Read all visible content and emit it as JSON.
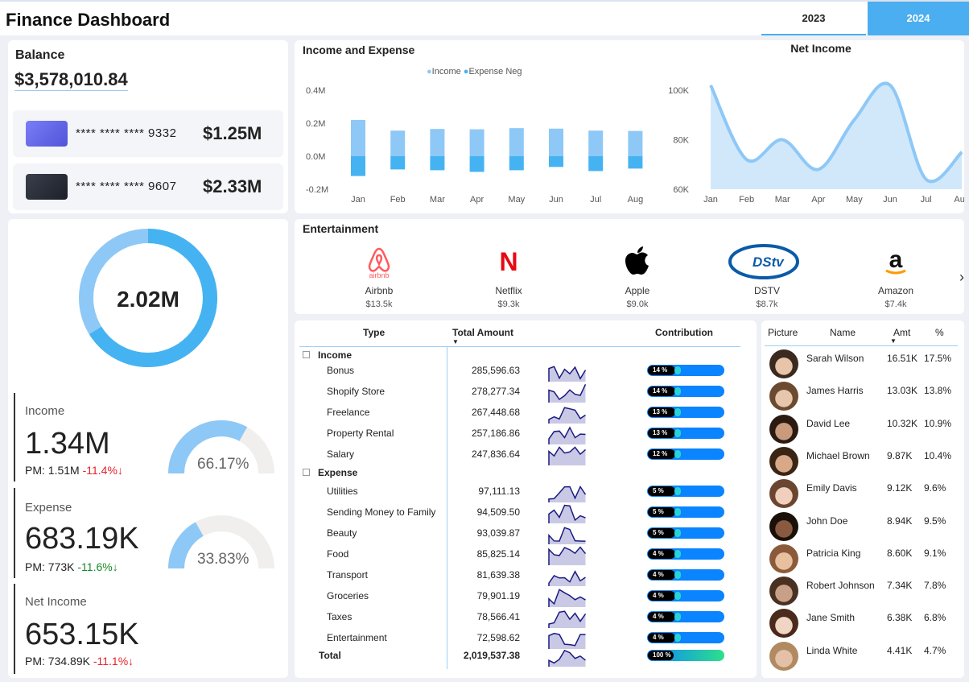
{
  "header": {
    "title": "Finance Dashboard",
    "years": [
      "2023",
      "2024"
    ],
    "selected_year": "2024"
  },
  "balance": {
    "label": "Balance",
    "value": "$3,578,010.84",
    "cards": [
      {
        "number": "**** **** **** 9332",
        "amount": "$1.25M",
        "color": "#6b6ff0"
      },
      {
        "number": "**** **** **** 9607",
        "amount": "$2.33M",
        "color": "#2b2f3a"
      }
    ]
  },
  "donut": {
    "value": "2.02M",
    "income_share": 0.6617
  },
  "kpis": [
    {
      "label": "Income",
      "value": "1.34M",
      "pm": "PM: 1.51M",
      "change": "-11.4%",
      "arrow": "↓",
      "change_color": "#e8202a",
      "gauge_value": "66.17%",
      "gauge": 0.6617
    },
    {
      "label": "Expense",
      "value": "683.19K",
      "pm": "PM: 773K",
      "change": "-11.6%",
      "arrow": "↓",
      "change_color": "#1a8a2a",
      "gauge_value": "33.83%",
      "gauge": 0.3383
    },
    {
      "label": "Net Income",
      "value": "653.15K",
      "pm": "PM: 734.89K",
      "change": "-11.1%",
      "arrow": "↓",
      "change_color": "#e8202a"
    }
  ],
  "chart_data": [
    {
      "type": "bar",
      "title": "Income and Expense",
      "categories": [
        "Jan",
        "Feb",
        "Mar",
        "Apr",
        "May",
        "Jun",
        "Jul",
        "Aug"
      ],
      "series": [
        {
          "name": "Income",
          "values": [
            0.22,
            0.155,
            0.165,
            0.163,
            0.17,
            0.167,
            0.155,
            0.153
          ],
          "color": "#8ec8f6"
        },
        {
          "name": "Expense Neg",
          "values": [
            -0.12,
            -0.08,
            -0.085,
            -0.095,
            -0.085,
            -0.065,
            -0.09,
            -0.075
          ],
          "color": "#45b3f2"
        }
      ],
      "ylim": [
        -0.2,
        0.4
      ],
      "yticks": [
        "0.4M",
        "0.2M",
        "0.0M",
        "-0.2M"
      ],
      "legend": "top"
    },
    {
      "type": "area",
      "title": "Net Income",
      "categories": [
        "Jan",
        "Feb",
        "Mar",
        "Apr",
        "May",
        "Jun",
        "Jul",
        "Aug"
      ],
      "values": [
        102,
        72,
        80,
        68,
        88,
        102,
        64,
        75
      ],
      "ylim": [
        60,
        105
      ],
      "yticks": [
        "100K",
        "80K",
        "60K"
      ],
      "color": "#8ec8f6"
    }
  ],
  "entertainment": {
    "title": "Entertainment",
    "items": [
      {
        "name": "Airbnb",
        "amount": "$13.5k"
      },
      {
        "name": "Netflix",
        "amount": "$9.3k"
      },
      {
        "name": "Apple",
        "amount": "$9.0k"
      },
      {
        "name": "DSTV",
        "amount": "$8.7k"
      },
      {
        "name": "Amazon",
        "amount": "$7.4k"
      }
    ]
  },
  "table": {
    "headers": [
      "Type",
      "Total Amount",
      "Contribution"
    ],
    "groups": [
      {
        "name": "Income",
        "rows": [
          {
            "type": "Bonus",
            "amount": "285,596.63",
            "pct": "14 %"
          },
          {
            "type": "Shopify Store",
            "amount": "278,277.34",
            "pct": "14 %"
          },
          {
            "type": "Freelance",
            "amount": "267,448.68",
            "pct": "13 %"
          },
          {
            "type": "Property Rental",
            "amount": "257,186.86",
            "pct": "13 %"
          },
          {
            "type": "Salary",
            "amount": "247,836.64",
            "pct": "12 %"
          }
        ]
      },
      {
        "name": "Expense",
        "rows": [
          {
            "type": "Utilities",
            "amount": "97,111.13",
            "pct": "5 %"
          },
          {
            "type": "Sending Money to Family",
            "amount": "94,509.50",
            "pct": "5 %"
          },
          {
            "type": "Beauty",
            "amount": "93,039.87",
            "pct": "5 %"
          },
          {
            "type": "Food",
            "amount": "85,825.14",
            "pct": "4 %"
          },
          {
            "type": "Transport",
            "amount": "81,639.38",
            "pct": "4 %"
          },
          {
            "type": "Groceries",
            "amount": "79,901.19",
            "pct": "4 %"
          },
          {
            "type": "Taxes",
            "amount": "78,566.41",
            "pct": "4 %"
          },
          {
            "type": "Entertainment",
            "amount": "72,598.62",
            "pct": "4 %"
          }
        ]
      }
    ],
    "total": {
      "label": "Total",
      "amount": "2,019,537.38",
      "pct": "100 %"
    }
  },
  "people": {
    "headers": [
      "Picture",
      "Name",
      "Amt",
      "%"
    ],
    "rows": [
      {
        "name": "Sarah Wilson",
        "amt": "16.51K",
        "pct": "17.5%"
      },
      {
        "name": "James Harris",
        "amt": "13.03K",
        "pct": "13.8%"
      },
      {
        "name": "David Lee",
        "amt": "10.32K",
        "pct": "10.9%"
      },
      {
        "name": "Michael Brown",
        "amt": "9.87K",
        "pct": "10.4%"
      },
      {
        "name": "Emily Davis",
        "amt": "9.12K",
        "pct": "9.6%"
      },
      {
        "name": "John Doe",
        "amt": "8.94K",
        "pct": "9.5%"
      },
      {
        "name": "Patricia King",
        "amt": "8.60K",
        "pct": "9.1%"
      },
      {
        "name": "Robert Johnson",
        "amt": "7.34K",
        "pct": "7.8%"
      },
      {
        "name": "Jane Smith",
        "amt": "6.38K",
        "pct": "6.8%"
      },
      {
        "name": "Linda White",
        "amt": "4.41K",
        "pct": "4.7%"
      }
    ]
  }
}
